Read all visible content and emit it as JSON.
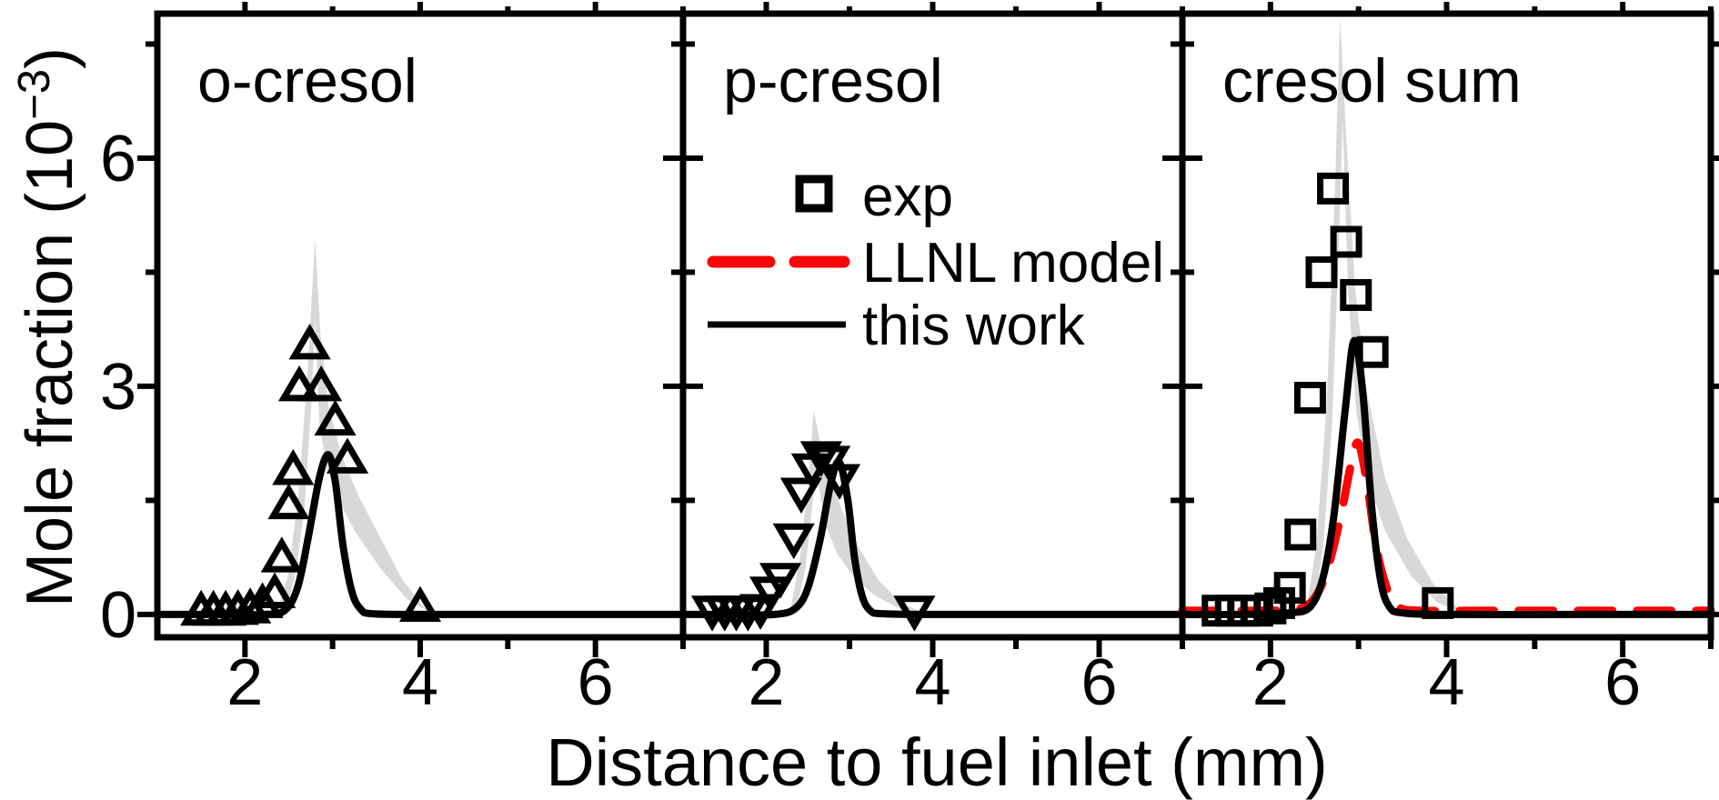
{
  "figure": {
    "xlabel": "Distance to fuel inlet (mm)",
    "ylabel": {
      "prefix": "Mole fraction (10",
      "exponent": "−3",
      "suffix": ")"
    },
    "colors": {
      "axis": "#000000",
      "band": "#d8d8d8",
      "llnl_model": "#f90606",
      "this_work": "#000000",
      "marker": "#000000",
      "background": "#ffffff"
    }
  },
  "axes": {
    "xlim": [
      1.0,
      7.0
    ],
    "ylim": [
      -0.3,
      7.9
    ],
    "x_major_ticks": [
      2,
      4,
      6
    ],
    "x_minor_ticks": [
      3,
      5,
      7
    ],
    "y_major_ticks": [
      0,
      3,
      6
    ],
    "y_minor_ticks": [
      1.5,
      4.5,
      7.5
    ],
    "x_tick_labels": [
      "2",
      "4",
      "6"
    ],
    "y_tick_labels": [
      "0",
      "3",
      "6"
    ]
  },
  "legend": {
    "items": [
      {
        "label": "exp",
        "glyph": "square-marker"
      },
      {
        "label": "LLNL model",
        "glyph": "red-dashed-line"
      },
      {
        "label": "this work",
        "glyph": "black-solid-line"
      }
    ]
  },
  "chart_data": [
    {
      "type": "scatter+line",
      "title": "o-cresol",
      "marker": "triangle-up",
      "exp": [
        [
          1.5,
          0.05
        ],
        [
          1.64,
          0.05
        ],
        [
          1.78,
          0.05
        ],
        [
          1.92,
          0.06
        ],
        [
          2.06,
          0.08
        ],
        [
          2.2,
          0.15
        ],
        [
          2.34,
          0.28
        ],
        [
          2.42,
          0.75
        ],
        [
          2.5,
          1.45
        ],
        [
          2.55,
          1.9
        ],
        [
          2.62,
          3.0
        ],
        [
          2.74,
          3.55
        ],
        [
          2.87,
          3.0
        ],
        [
          3.03,
          2.55
        ],
        [
          3.17,
          2.05
        ],
        [
          4.0,
          0.1
        ]
      ],
      "band": [
        [
          2.36,
          0
        ],
        [
          2.5,
          0.55
        ],
        [
          2.62,
          1.7
        ],
        [
          2.72,
          3.3
        ],
        [
          2.8,
          4.95
        ],
        [
          2.86,
          3.7
        ],
        [
          2.95,
          2.75
        ],
        [
          3.1,
          2.1
        ],
        [
          3.3,
          1.55
        ],
        [
          3.55,
          1.0
        ],
        [
          3.8,
          0.45
        ],
        [
          4.08,
          0.05
        ],
        [
          3.85,
          0.2
        ],
        [
          3.55,
          0.6
        ],
        [
          3.25,
          1.1
        ],
        [
          3.05,
          1.55
        ],
        [
          2.93,
          1.95
        ],
        [
          2.85,
          2.5
        ],
        [
          2.8,
          3.9
        ],
        [
          2.76,
          2.8
        ],
        [
          2.68,
          1.4
        ],
        [
          2.58,
          0.55
        ],
        [
          2.47,
          0.05
        ]
      ],
      "this_work": [
        [
          1.0,
          0
        ],
        [
          1.6,
          0
        ],
        [
          2.2,
          0
        ],
        [
          2.45,
          0.05
        ],
        [
          2.6,
          0.35
        ],
        [
          2.72,
          1.0
        ],
        [
          2.85,
          1.8
        ],
        [
          2.95,
          2.1
        ],
        [
          3.03,
          1.75
        ],
        [
          3.12,
          0.9
        ],
        [
          3.22,
          0.3
        ],
        [
          3.32,
          0.07
        ],
        [
          3.45,
          0.01
        ],
        [
          4.0,
          0
        ],
        [
          5.0,
          0
        ],
        [
          6.0,
          0
        ],
        [
          7.0,
          0
        ]
      ],
      "llnl": null
    },
    {
      "type": "scatter+line",
      "title": "p-cresol",
      "marker": "triangle-down",
      "exp": [
        [
          1.35,
          0.05
        ],
        [
          1.5,
          0.05
        ],
        [
          1.64,
          0.05
        ],
        [
          1.78,
          0.05
        ],
        [
          1.93,
          0.07
        ],
        [
          2.05,
          0.3
        ],
        [
          2.17,
          0.48
        ],
        [
          2.33,
          1.0
        ],
        [
          2.42,
          1.6
        ],
        [
          2.55,
          1.92
        ],
        [
          2.66,
          2.08
        ],
        [
          2.76,
          2.02
        ],
        [
          2.88,
          1.78
        ],
        [
          3.78,
          0.05
        ]
      ],
      "band": [
        [
          2.28,
          0
        ],
        [
          2.4,
          0.7
        ],
        [
          2.5,
          1.7
        ],
        [
          2.57,
          2.68
        ],
        [
          2.64,
          2.3
        ],
        [
          2.75,
          1.85
        ],
        [
          2.9,
          1.4
        ],
        [
          3.1,
          0.9
        ],
        [
          3.35,
          0.45
        ],
        [
          3.62,
          0.15
        ],
        [
          3.9,
          0.02
        ],
        [
          3.6,
          0.08
        ],
        [
          3.3,
          0.25
        ],
        [
          3.05,
          0.5
        ],
        [
          2.85,
          0.8
        ],
        [
          2.7,
          1.2
        ],
        [
          2.6,
          1.9
        ],
        [
          2.55,
          1.4
        ],
        [
          2.47,
          0.6
        ],
        [
          2.36,
          0.05
        ]
      ],
      "this_work": [
        [
          1.0,
          0
        ],
        [
          1.6,
          0
        ],
        [
          2.1,
          0
        ],
        [
          2.35,
          0.08
        ],
        [
          2.5,
          0.35
        ],
        [
          2.65,
          1.0
        ],
        [
          2.78,
          1.75
        ],
        [
          2.88,
          2.0
        ],
        [
          2.98,
          1.5
        ],
        [
          3.06,
          0.75
        ],
        [
          3.15,
          0.25
        ],
        [
          3.25,
          0.05
        ],
        [
          3.4,
          0.01
        ],
        [
          4.0,
          0
        ],
        [
          5.0,
          0
        ],
        [
          6.0,
          0
        ],
        [
          7.0,
          0
        ]
      ],
      "llnl": null
    },
    {
      "type": "scatter+line",
      "title": "cresol sum",
      "marker": "square",
      "exp": [
        [
          1.4,
          0.05
        ],
        [
          1.55,
          0.05
        ],
        [
          1.7,
          0.05
        ],
        [
          1.85,
          0.05
        ],
        [
          2.0,
          0.08
        ],
        [
          2.1,
          0.15
        ],
        [
          2.22,
          0.35
        ],
        [
          2.34,
          1.05
        ],
        [
          2.45,
          2.85
        ],
        [
          2.58,
          4.5
        ],
        [
          2.71,
          5.6
        ],
        [
          2.86,
          4.9
        ],
        [
          2.97,
          4.2
        ],
        [
          3.16,
          3.45
        ],
        [
          3.9,
          0.15
        ]
      ],
      "band": [
        [
          2.4,
          0
        ],
        [
          2.52,
          0.9
        ],
        [
          2.64,
          2.8
        ],
        [
          2.73,
          5.5
        ],
        [
          2.79,
          7.85
        ],
        [
          2.86,
          6.3
        ],
        [
          2.96,
          4.3
        ],
        [
          3.1,
          2.9
        ],
        [
          3.3,
          1.8
        ],
        [
          3.55,
          1.0
        ],
        [
          3.85,
          0.4
        ],
        [
          4.18,
          0.03
        ],
        [
          3.9,
          0.15
        ],
        [
          3.6,
          0.5
        ],
        [
          3.3,
          1.1
        ],
        [
          3.1,
          1.8
        ],
        [
          2.97,
          2.7
        ],
        [
          2.88,
          4.3
        ],
        [
          2.82,
          6.5
        ],
        [
          2.78,
          5.0
        ],
        [
          2.7,
          2.5
        ],
        [
          2.6,
          0.9
        ],
        [
          2.49,
          0.05
        ]
      ],
      "this_work": [
        [
          1.0,
          0
        ],
        [
          1.6,
          0
        ],
        [
          2.2,
          0.02
        ],
        [
          2.45,
          0.1
        ],
        [
          2.6,
          0.5
        ],
        [
          2.72,
          1.3
        ],
        [
          2.85,
          2.7
        ],
        [
          2.95,
          3.6
        ],
        [
          3.05,
          2.9
        ],
        [
          3.15,
          1.4
        ],
        [
          3.25,
          0.45
        ],
        [
          3.35,
          0.1
        ],
        [
          3.5,
          0.02
        ],
        [
          4.0,
          0
        ],
        [
          5.5,
          0
        ],
        [
          7.0,
          0
        ]
      ],
      "llnl": [
        [
          1.0,
          0.05
        ],
        [
          1.6,
          0.05
        ],
        [
          2.2,
          0.06
        ],
        [
          2.45,
          0.15
        ],
        [
          2.62,
          0.5
        ],
        [
          2.78,
          1.2
        ],
        [
          2.92,
          2.0
        ],
        [
          3.0,
          2.25
        ],
        [
          3.1,
          1.7
        ],
        [
          3.2,
          0.9
        ],
        [
          3.32,
          0.35
        ],
        [
          3.45,
          0.1
        ],
        [
          3.7,
          0.05
        ],
        [
          4.5,
          0.05
        ],
        [
          5.5,
          0.05
        ],
        [
          6.3,
          0.05
        ],
        [
          7.0,
          0.05
        ]
      ]
    }
  ]
}
